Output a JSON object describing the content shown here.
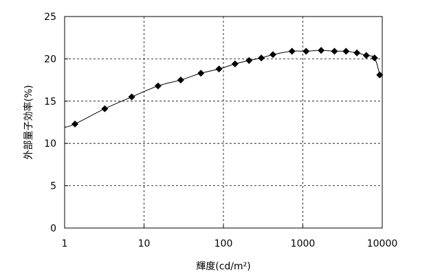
{
  "chart_data": {
    "type": "scatter",
    "title": "",
    "xlabel": "輝度(cd/m²)",
    "ylabel": "外部量子効率(%)",
    "xscale": "log",
    "xlim": [
      1,
      10000
    ],
    "ylim": [
      0,
      25
    ],
    "grid": true,
    "x_ticks": [
      1,
      10,
      100,
      1000,
      10000
    ],
    "x_tick_labels": [
      "1",
      "10",
      "100",
      "1000",
      "10000"
    ],
    "y_ticks": [
      0,
      5,
      10,
      15,
      20,
      25
    ],
    "y_tick_labels": [
      "0",
      "5",
      "10",
      "15",
      "20",
      "25"
    ],
    "series": [
      {
        "marker": "diamond",
        "color": "#000000",
        "x": [
          1.35,
          3.2,
          7.0,
          15,
          29,
          52,
          88,
          140,
          210,
          300,
          420,
          730,
          1100,
          1700,
          2500,
          3500,
          4800,
          6300,
          8000,
          9300
        ],
        "y": [
          12.3,
          14.1,
          15.5,
          16.8,
          17.5,
          18.3,
          18.8,
          19.4,
          19.8,
          20.1,
          20.5,
          20.9,
          20.9,
          21.0,
          20.9,
          20.9,
          20.7,
          20.4,
          20.1,
          18.1
        ]
      }
    ],
    "curve": {
      "x": [
        1,
        1.35,
        3.2,
        7.0,
        15,
        29,
        52,
        88,
        140,
        210,
        300,
        420,
        730,
        1100,
        1700,
        2500,
        3500,
        4800,
        6300,
        8000,
        9300
      ],
      "y": [
        11.9,
        12.3,
        14.1,
        15.5,
        16.8,
        17.5,
        18.3,
        18.8,
        19.4,
        19.8,
        20.1,
        20.5,
        20.9,
        20.9,
        21.0,
        20.9,
        20.9,
        20.7,
        20.4,
        20.1,
        18.1
      ]
    }
  }
}
